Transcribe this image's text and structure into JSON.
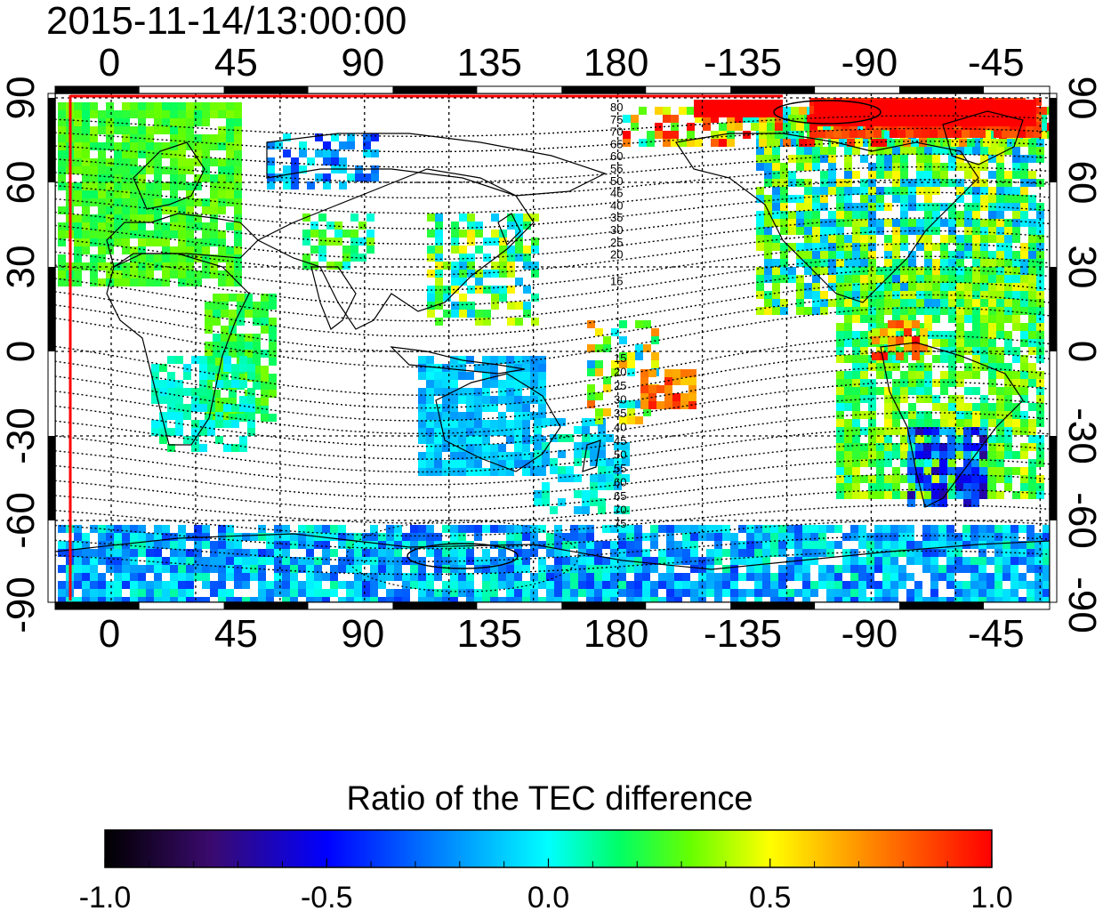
{
  "title": "2015-11-14/13:00:00",
  "map": {
    "top_lon_labels": [
      "0",
      "45",
      "90",
      "135",
      "180",
      "-135",
      "-90",
      "-45"
    ],
    "bottom_lon_labels": [
      "0",
      "45",
      "90",
      "135",
      "180",
      "-135",
      "-90",
      "-45"
    ],
    "left_lat_labels": [
      "90",
      "60",
      "30",
      "0",
      "-30",
      "-60",
      "-90"
    ],
    "right_lat_labels": [
      "90",
      "60",
      "30",
      "0",
      "-30",
      "-60",
      "-90"
    ],
    "contour_labels_north": [
      "80",
      "75",
      "70",
      "65",
      "60",
      "55",
      "50",
      "45",
      "40",
      "35",
      "30",
      "25",
      "20",
      "15"
    ],
    "contour_labels_south": [
      "15",
      "20",
      "25",
      "30",
      "35",
      "40",
      "45",
      "50",
      "55",
      "60",
      "65",
      "70",
      "75"
    ],
    "colors": {
      "marker_line": "#ff0000",
      "coast": "#000000"
    }
  },
  "colorbar": {
    "title": "Ratio of the TEC difference",
    "tick_labels": [
      "-1.0",
      "-0.5",
      "0.0",
      "0.5",
      "1.0"
    ],
    "range": [
      -1.0,
      1.0
    ],
    "colormap_stops": [
      "#000000",
      "#3a0a6e",
      "#0000ff",
      "#00ffff",
      "#00ff00",
      "#ffff00",
      "#ff8000",
      "#ff0000"
    ]
  }
}
